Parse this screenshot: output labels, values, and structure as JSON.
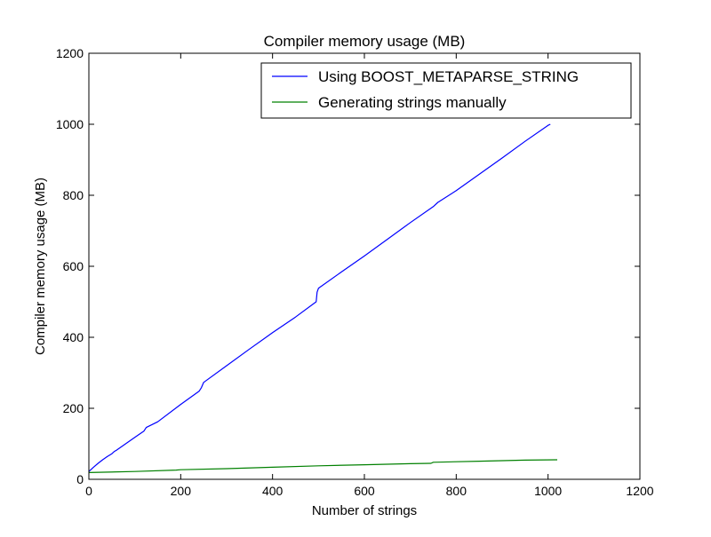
{
  "chart_data": {
    "type": "line",
    "title": "Compiler memory usage (MB)",
    "xlabel": "Number of strings",
    "ylabel": "Compiler memory usage (MB)",
    "xlim": [
      0,
      1200
    ],
    "ylim": [
      0,
      1200
    ],
    "xticks": [
      0,
      200,
      400,
      600,
      800,
      1000,
      1200
    ],
    "yticks": [
      0,
      200,
      400,
      600,
      800,
      1000,
      1200
    ],
    "grid": false,
    "legend_position": "top-right",
    "series": [
      {
        "name": "Using BOOST_METAPARSE_STRING",
        "color": "#0000ff",
        "points": [
          [
            0,
            22
          ],
          [
            10,
            34
          ],
          [
            20,
            45
          ],
          [
            30,
            55
          ],
          [
            40,
            64
          ],
          [
            50,
            72
          ],
          [
            55,
            78
          ],
          [
            60,
            82
          ],
          [
            80,
            100
          ],
          [
            100,
            118
          ],
          [
            120,
            136
          ],
          [
            125,
            146
          ],
          [
            150,
            162
          ],
          [
            200,
            211
          ],
          [
            240,
            248
          ],
          [
            245,
            258
          ],
          [
            250,
            273
          ],
          [
            300,
            320
          ],
          [
            350,
            367
          ],
          [
            400,
            413
          ],
          [
            450,
            457
          ],
          [
            495,
            500
          ],
          [
            497,
            527
          ],
          [
            500,
            538
          ],
          [
            550,
            584
          ],
          [
            600,
            629
          ],
          [
            650,
            676
          ],
          [
            700,
            723
          ],
          [
            750,
            768
          ],
          [
            760,
            780
          ],
          [
            800,
            813
          ],
          [
            850,
            859
          ],
          [
            900,
            905
          ],
          [
            950,
            952
          ],
          [
            1000,
            997
          ],
          [
            1005,
            1000
          ]
        ]
      },
      {
        "name": "Generating strings manually",
        "color": "#008000",
        "points": [
          [
            0,
            19
          ],
          [
            100,
            22
          ],
          [
            190,
            26
          ],
          [
            200,
            27
          ],
          [
            300,
            30
          ],
          [
            400,
            34
          ],
          [
            500,
            38
          ],
          [
            600,
            41
          ],
          [
            700,
            44
          ],
          [
            745,
            45
          ],
          [
            750,
            48
          ],
          [
            850,
            51
          ],
          [
            950,
            54
          ],
          [
            1020,
            55
          ]
        ]
      }
    ]
  }
}
